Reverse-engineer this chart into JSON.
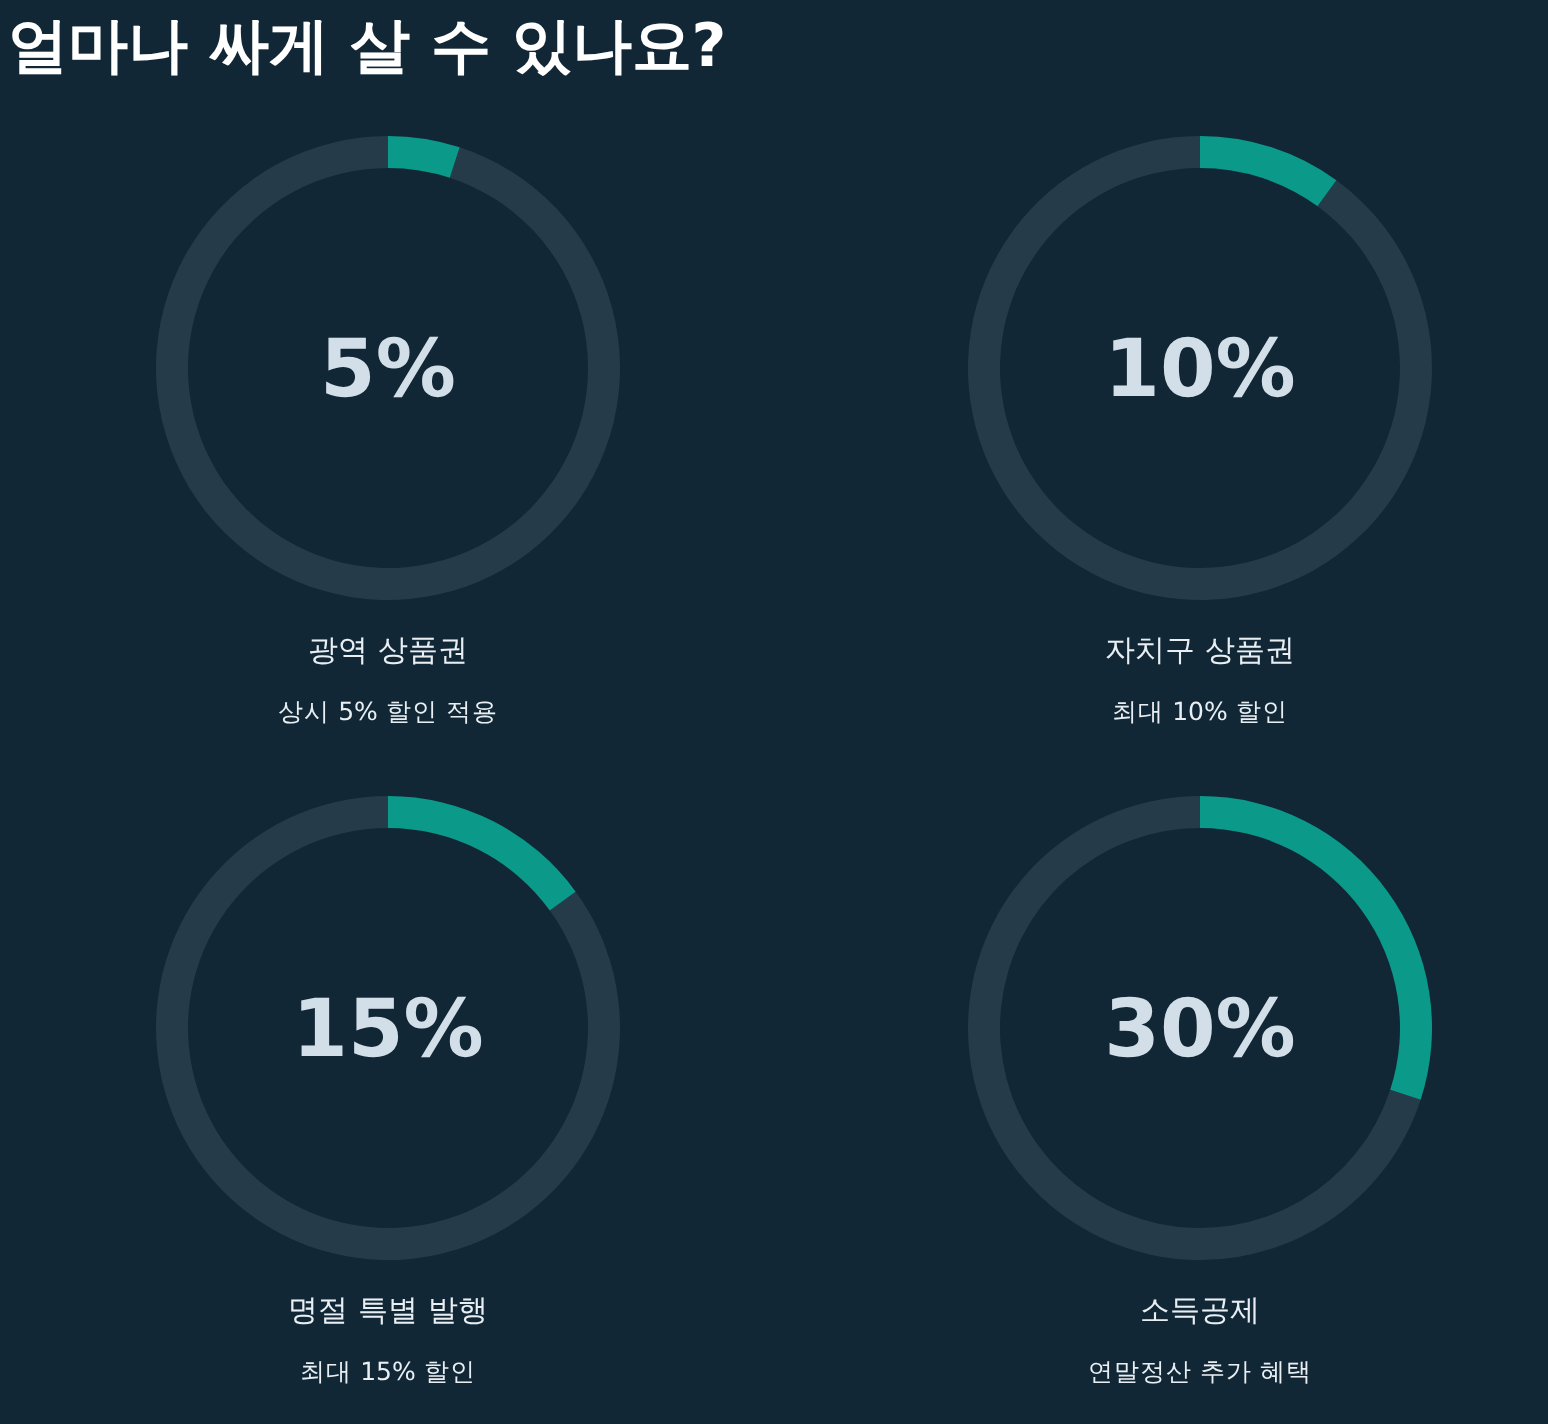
{
  "chart_data": [
    {
      "type": "other",
      "title": "얼마나 싸게 살 수 있나요?"
    },
    {
      "type": "donut",
      "title": "광역 상품권",
      "subtitle": "상시 5% 할인 적용",
      "categories": [
        null,
        null
      ],
      "values": [
        5,
        95
      ],
      "colors": [
        "#0b9a89",
        "#4b6170"
      ],
      "annotations": [
        "5%"
      ]
    },
    {
      "type": "donut",
      "title": "자치구 상품권",
      "subtitle": "최대 10% 할인",
      "categories": [
        null,
        null
      ],
      "values": [
        10,
        90
      ],
      "colors": [
        "#0b9a89",
        "#4b6170"
      ],
      "annotations": [
        "10%"
      ]
    },
    {
      "type": "donut",
      "title": "명절 특별 발행",
      "subtitle": "최대 15% 할인",
      "categories": [
        null,
        null
      ],
      "values": [
        15,
        85
      ],
      "colors": [
        "#0b9a89",
        "#4b6170"
      ],
      "annotations": [
        "15%"
      ]
    },
    {
      "type": "donut",
      "title": "소득공제",
      "subtitle": "연말정산 추가 혜택",
      "categories": [
        null,
        null
      ],
      "values": [
        30,
        70
      ],
      "colors": [
        "#0b9a89",
        "#4b6170"
      ],
      "annotations": [
        "30%"
      ]
    }
  ]
}
